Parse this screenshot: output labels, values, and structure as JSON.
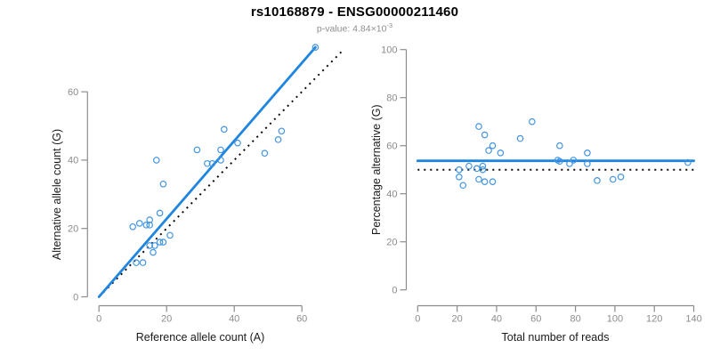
{
  "header": {
    "title": "rs10168879 - ENSG00000211460",
    "p_value_prefix": "p-value: 4.84×10",
    "p_value_exponent": "-3"
  },
  "colors": {
    "accent_blue": "#1e86e0",
    "point_blue": "#4395e2",
    "axis_gray": "#8c8c8c",
    "tick_text_gray": "#8c8c8c",
    "axis_title_black": "#1a1a1a",
    "dotted_black": "#0a0a0a"
  },
  "chart_data": [
    {
      "id": "allele-counts-scatter",
      "type": "scatter",
      "xlabel": "Reference allele count (A)",
      "ylabel": "Alternative allele count (G)",
      "xlim": [
        0,
        73
      ],
      "ylim": [
        0,
        73
      ],
      "xticks": [
        0,
        20,
        40,
        60
      ],
      "yticks": [
        0,
        20,
        40,
        60
      ],
      "grid": false,
      "legend": null,
      "points": [
        [
          10,
          20.5
        ],
        [
          12,
          21.5
        ],
        [
          14,
          21
        ],
        [
          15,
          22.5
        ],
        [
          15,
          21
        ],
        [
          18,
          24.5
        ],
        [
          21,
          18
        ],
        [
          19,
          16
        ],
        [
          18,
          16
        ],
        [
          16.5,
          15
        ],
        [
          15,
          15
        ],
        [
          16,
          13
        ],
        [
          11,
          10
        ],
        [
          13,
          10
        ],
        [
          17,
          40
        ],
        [
          19,
          33
        ],
        [
          29,
          43
        ],
        [
          32,
          39
        ],
        [
          33.5,
          39
        ],
        [
          36,
          43
        ],
        [
          36,
          40
        ],
        [
          37,
          49
        ],
        [
          41,
          45
        ],
        [
          49,
          42
        ],
        [
          53,
          46
        ],
        [
          54,
          48.5
        ],
        [
          64,
          73
        ]
      ],
      "lines": [
        {
          "name": "fit-line",
          "style": "solid",
          "x1": 0,
          "y1": 0,
          "x2": 64,
          "y2": 73
        },
        {
          "name": "identity-line",
          "style": "dotted",
          "x1": 0,
          "y1": 0,
          "x2": 72,
          "y2": 72
        }
      ]
    },
    {
      "id": "percentage-vs-reads-scatter",
      "type": "scatter",
      "xlabel": "Total number of reads",
      "ylabel": "Percentage alternative (G)",
      "xlim": [
        0,
        140
      ],
      "ylim": [
        0,
        100
      ],
      "xticks": [
        0,
        20,
        40,
        60,
        80,
        100,
        120,
        140
      ],
      "yticks": [
        0,
        20,
        40,
        60,
        80,
        100
      ],
      "grid": false,
      "legend": null,
      "points": [
        [
          21,
          47
        ],
        [
          21,
          50
        ],
        [
          23,
          43.5
        ],
        [
          26,
          51.5
        ],
        [
          30,
          50.5
        ],
        [
          31,
          46
        ],
        [
          31,
          68
        ],
        [
          33,
          51.5
        ],
        [
          33,
          50
        ],
        [
          34,
          64.5
        ],
        [
          34,
          45
        ],
        [
          36,
          58
        ],
        [
          38,
          60
        ],
        [
          38,
          45
        ],
        [
          42,
          57
        ],
        [
          52,
          63
        ],
        [
          58,
          70
        ],
        [
          71,
          54
        ],
        [
          72,
          53.5
        ],
        [
          72,
          60
        ],
        [
          77,
          52.5
        ],
        [
          79,
          54
        ],
        [
          86,
          57
        ],
        [
          86,
          52.5
        ],
        [
          91,
          45.5
        ],
        [
          99,
          46
        ],
        [
          103,
          47
        ],
        [
          137,
          53
        ]
      ],
      "lines": [
        {
          "name": "mean-line",
          "style": "solid",
          "x1": 0,
          "y1": 53.7,
          "x2": 140,
          "y2": 53.7
        },
        {
          "name": "null-line",
          "style": "dotted",
          "x1": 0,
          "y1": 50,
          "x2": 140,
          "y2": 50
        }
      ]
    }
  ]
}
